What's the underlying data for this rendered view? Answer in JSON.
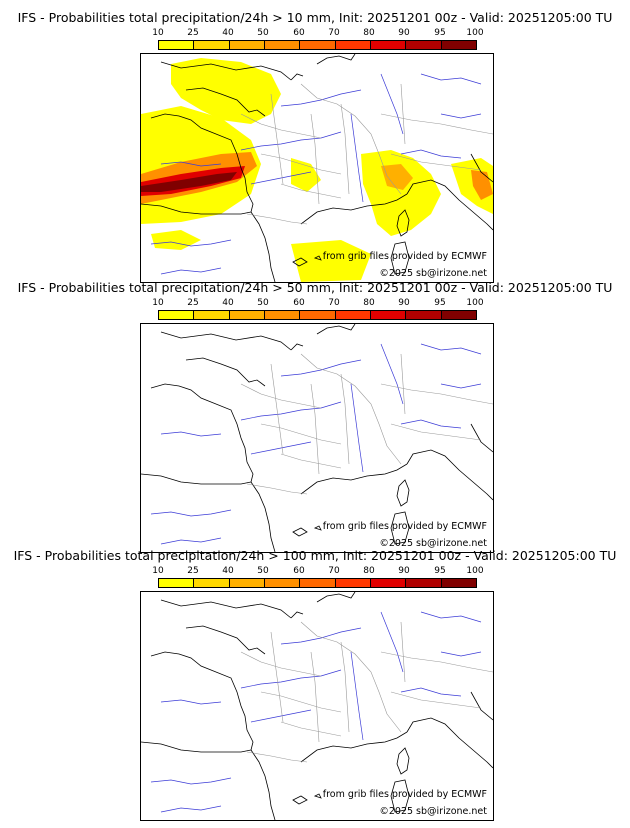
{
  "colorbar": {
    "ticks": [
      "10",
      "25",
      "40",
      "50",
      "60",
      "70",
      "80",
      "90",
      "95",
      "100"
    ],
    "colors": [
      "#ffff00",
      "#ffd800",
      "#ffb000",
      "#ff9000",
      "#ff6800",
      "#ff3800",
      "#e00000",
      "#b00000",
      "#800000",
      "#500000"
    ]
  },
  "panels": [
    {
      "title": "IFS - Probabilities total precipitation/24h > 10 mm, Init: 20251201 00z - Valid: 20251205:00 TU",
      "source": "from grib files provided by ECMWF",
      "copyright": "©2025 sb@irizone.net"
    },
    {
      "title": "IFS - Probabilities total precipitation/24h > 50 mm, Init: 20251201 00z - Valid: 20251205:00 TU",
      "source": "from grib files provided by ECMWF",
      "copyright": "©2025 sb@irizone.net"
    },
    {
      "title": "IFS - Probabilities total precipitation/24h > 100 mm, Init: 20251201 00z - Valid: 20251205:00 TU",
      "source": "from grib files provided by ECMWF",
      "copyright": "©2025 sb@irizone.net"
    }
  ]
}
